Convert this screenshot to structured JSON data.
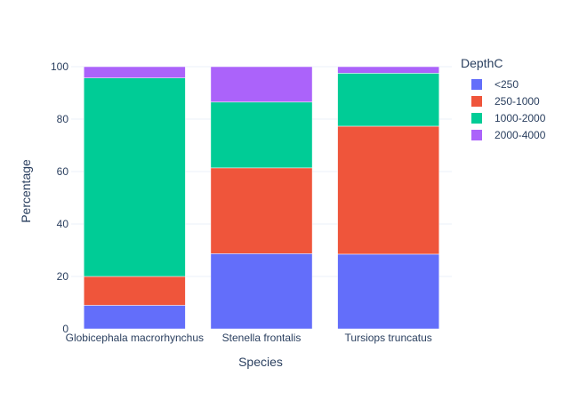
{
  "chart_data": {
    "type": "bar",
    "stacked": true,
    "xlabel": "Species",
    "ylabel": "Percentage",
    "ylim": [
      0,
      100
    ],
    "yticks": [
      0,
      20,
      40,
      60,
      80,
      100
    ],
    "grid": true,
    "legend_placement": "right",
    "legend_title": "DepthC",
    "categories": [
      "Globicephala macrorhynchus",
      "Stenella frontalis",
      "Tursiops truncatus"
    ],
    "series": [
      {
        "name": "<250",
        "color": "#636efa",
        "values": [
          9,
          28.7,
          28.5
        ]
      },
      {
        "name": "250-1000",
        "color": "#ef553b",
        "values": [
          11,
          32.7,
          48.8
        ]
      },
      {
        "name": "1000-2000",
        "color": "#00cc96",
        "values": [
          75.7,
          25.1,
          20.2
        ]
      },
      {
        "name": "2000-4000",
        "color": "#ab63fa",
        "values": [
          4.3,
          13.5,
          2.5
        ]
      }
    ]
  }
}
